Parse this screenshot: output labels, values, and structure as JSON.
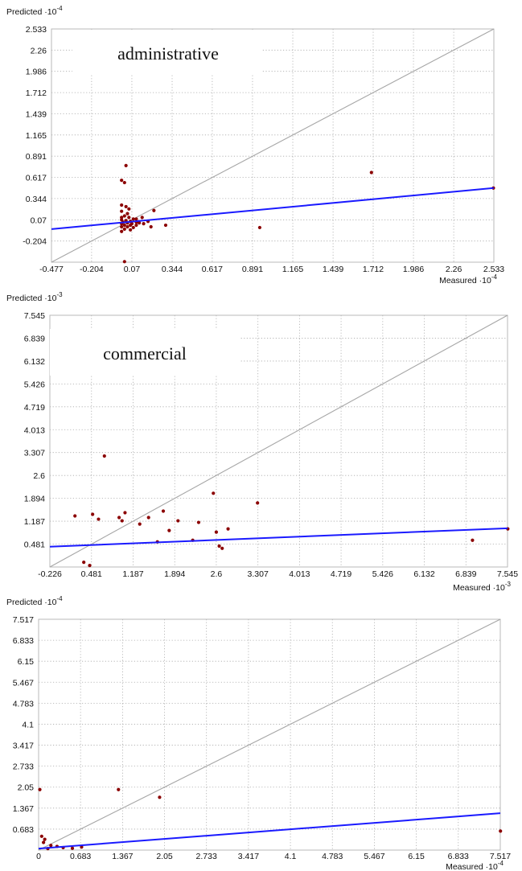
{
  "chart_data": [
    {
      "type": "scatter",
      "label": "administrative",
      "ylabel": "Predicted",
      "ylabel_exp": "-4",
      "xlabel": "Measured",
      "xlabel_exp": "-4",
      "x_ticks": [
        "-0.477",
        "-0.204",
        "0.07",
        "0.344",
        "0.617",
        "0.891",
        "1.165",
        "1.439",
        "1.712",
        "1.986",
        "2.26",
        "2.533"
      ],
      "y_ticks": [
        "-0.204",
        "0.07",
        "0.344",
        "0.617",
        "0.891",
        "1.165",
        "1.439",
        "1.712",
        "1.986",
        "2.26",
        "2.533"
      ],
      "xlim": [
        -0.477,
        2.533
      ],
      "ylim": [
        -0.477,
        2.533
      ],
      "grid": true,
      "identity_line": true,
      "fit_line": [
        [
          -0.477,
          -0.05
        ],
        [
          2.533,
          0.48
        ]
      ],
      "points": [
        [
          0.03,
          0.77
        ],
        [
          0.0,
          0.58
        ],
        [
          0.02,
          0.55
        ],
        [
          0.0,
          0.26
        ],
        [
          0.03,
          0.24
        ],
        [
          0.05,
          0.21
        ],
        [
          0.0,
          0.18
        ],
        [
          0.04,
          0.15
        ],
        [
          0.02,
          0.12
        ],
        [
          0.0,
          0.1
        ],
        [
          0.05,
          0.1
        ],
        [
          0.08,
          0.08
        ],
        [
          0.0,
          0.07
        ],
        [
          0.03,
          0.06
        ],
        [
          0.06,
          0.05
        ],
        [
          0.01,
          0.04
        ],
        [
          0.1,
          0.04
        ],
        [
          0.04,
          0.03
        ],
        [
          0.12,
          0.03
        ],
        [
          0.0,
          0.02
        ],
        [
          0.07,
          0.02
        ],
        [
          0.15,
          0.02
        ],
        [
          0.02,
          0.0
        ],
        [
          0.06,
          0.0
        ],
        [
          0.1,
          0.0
        ],
        [
          0.18,
          0.05
        ],
        [
          0.0,
          -0.02
        ],
        [
          0.04,
          -0.02
        ],
        [
          0.08,
          -0.03
        ],
        [
          0.2,
          -0.02
        ],
        [
          0.02,
          -0.05
        ],
        [
          0.06,
          -0.06
        ],
        [
          0.0,
          -0.08
        ],
        [
          0.1,
          0.08
        ],
        [
          0.14,
          0.1
        ],
        [
          0.22,
          0.19
        ],
        [
          0.3,
          0.0
        ],
        [
          0.94,
          -0.03
        ],
        [
          1.7,
          0.68
        ],
        [
          2.53,
          0.48
        ],
        [
          0.02,
          -0.47
        ]
      ]
    },
    {
      "type": "scatter",
      "label": "commercial",
      "ylabel": "Predicted",
      "ylabel_exp": "-3",
      "xlabel": "Measured",
      "xlabel_exp": "-3",
      "x_ticks": [
        "-0.226",
        "0.481",
        "1.187",
        "1.894",
        "2.6",
        "3.307",
        "4.013",
        "4.719",
        "5.426",
        "6.132",
        "6.839",
        "7.545"
      ],
      "y_ticks": [
        "0.481",
        "1.187",
        "1.894",
        "2.6",
        "3.307",
        "4.013",
        "4.719",
        "5.426",
        "6.132",
        "6.839",
        "7.545"
      ],
      "xlim": [
        -0.226,
        7.545
      ],
      "ylim": [
        -0.226,
        7.545
      ],
      "grid": true,
      "identity_line": true,
      "fit_line": [
        [
          -0.226,
          0.4
        ],
        [
          7.545,
          0.97
        ]
      ],
      "points": [
        [
          0.7,
          3.2
        ],
        [
          2.55,
          2.05
        ],
        [
          3.3,
          1.75
        ],
        [
          1.7,
          1.5
        ],
        [
          1.05,
          1.45
        ],
        [
          0.5,
          1.4
        ],
        [
          0.2,
          1.35
        ],
        [
          0.95,
          1.3
        ],
        [
          1.45,
          1.3
        ],
        [
          1.95,
          1.2
        ],
        [
          2.3,
          1.15
        ],
        [
          2.8,
          0.95
        ],
        [
          2.6,
          0.85
        ],
        [
          1.8,
          0.9
        ],
        [
          6.95,
          0.6
        ],
        [
          7.55,
          0.95
        ],
        [
          2.65,
          0.42
        ],
        [
          2.7,
          0.35
        ],
        [
          2.2,
          0.6
        ],
        [
          1.6,
          0.55
        ],
        [
          0.45,
          -0.18
        ],
        [
          0.35,
          -0.08
        ],
        [
          1.0,
          1.2
        ],
        [
          0.6,
          1.25
        ],
        [
          1.3,
          1.1
        ]
      ]
    },
    {
      "type": "scatter",
      "ylabel": "Predicted",
      "ylabel_exp": "-4",
      "xlabel": "Measured",
      "xlabel_exp": "-4",
      "x_ticks": [
        "0",
        "0.683",
        "1.367",
        "2.05",
        "2.733",
        "3.417",
        "4.1",
        "4.783",
        "5.467",
        "6.15",
        "6.833",
        "7.517"
      ],
      "y_ticks": [
        "0.683",
        "1.367",
        "2.05",
        "2.733",
        "3.417",
        "4.1",
        "4.783",
        "5.467",
        "6.15",
        "6.833",
        "7.517"
      ],
      "xlim": [
        0,
        7.517
      ],
      "ylim": [
        0,
        7.517
      ],
      "grid": true,
      "identity_line": true,
      "fit_line": [
        [
          0,
          0.05
        ],
        [
          7.517,
          1.2
        ]
      ],
      "points": [
        [
          0.02,
          1.97
        ],
        [
          1.3,
          1.97
        ],
        [
          1.97,
          1.72
        ],
        [
          7.52,
          0.62
        ],
        [
          0.05,
          0.45
        ],
        [
          0.1,
          0.35
        ],
        [
          0.08,
          0.25
        ],
        [
          0.3,
          0.12
        ],
        [
          0.4,
          0.08
        ],
        [
          0.55,
          0.06
        ],
        [
          0.7,
          0.1
        ],
        [
          0.2,
          0.15
        ],
        [
          0.15,
          0.05
        ]
      ]
    }
  ]
}
